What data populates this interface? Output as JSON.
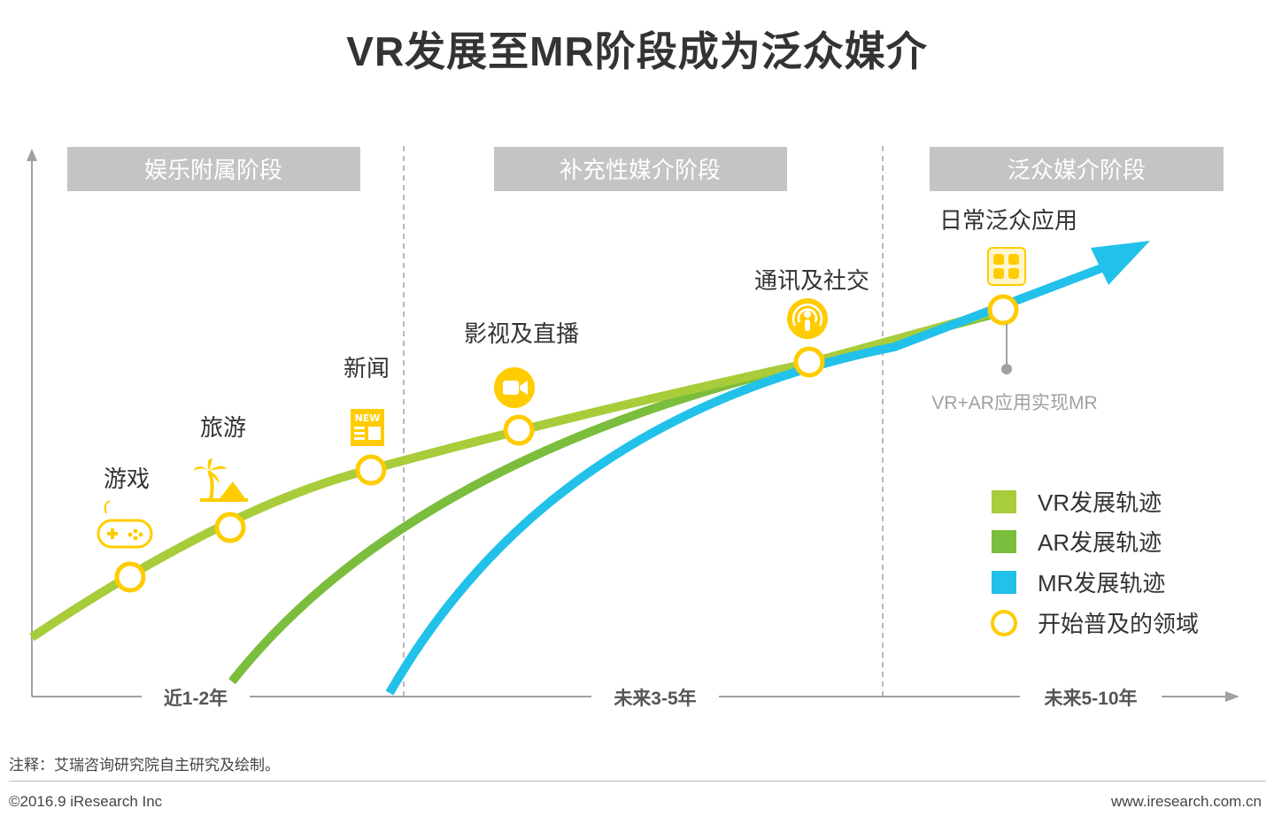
{
  "title": "VR发展至MR阶段成为泛众媒介",
  "stages": [
    "娱乐附属阶段",
    "补充性媒介阶段",
    "泛众媒介阶段"
  ],
  "time_axis": [
    "近1-2年",
    "未来3-5年",
    "未来5-10年"
  ],
  "milestones": [
    "游戏",
    "旅游",
    "新闻",
    "影视及直播",
    "通讯及社交",
    "日常泛众应用"
  ],
  "mr_note": "VR+AR应用实现MR",
  "legend": [
    "VR发展轨迹",
    "AR发展轨迹",
    "MR发展轨迹",
    "开始普及的领域"
  ],
  "colors": {
    "vr": "#a8cc3a",
    "ar": "#7bbd3c",
    "mr": "#22c1ea",
    "marker": "#ffcc00",
    "stage_box": "#c4c4c4",
    "axis": "#a0a0a0"
  },
  "note": "注释：艾瑞咨询研究院自主研究及绘制。",
  "copyright": "©2016.9 iResearch Inc",
  "site": "www.iresearch.com.cn"
}
